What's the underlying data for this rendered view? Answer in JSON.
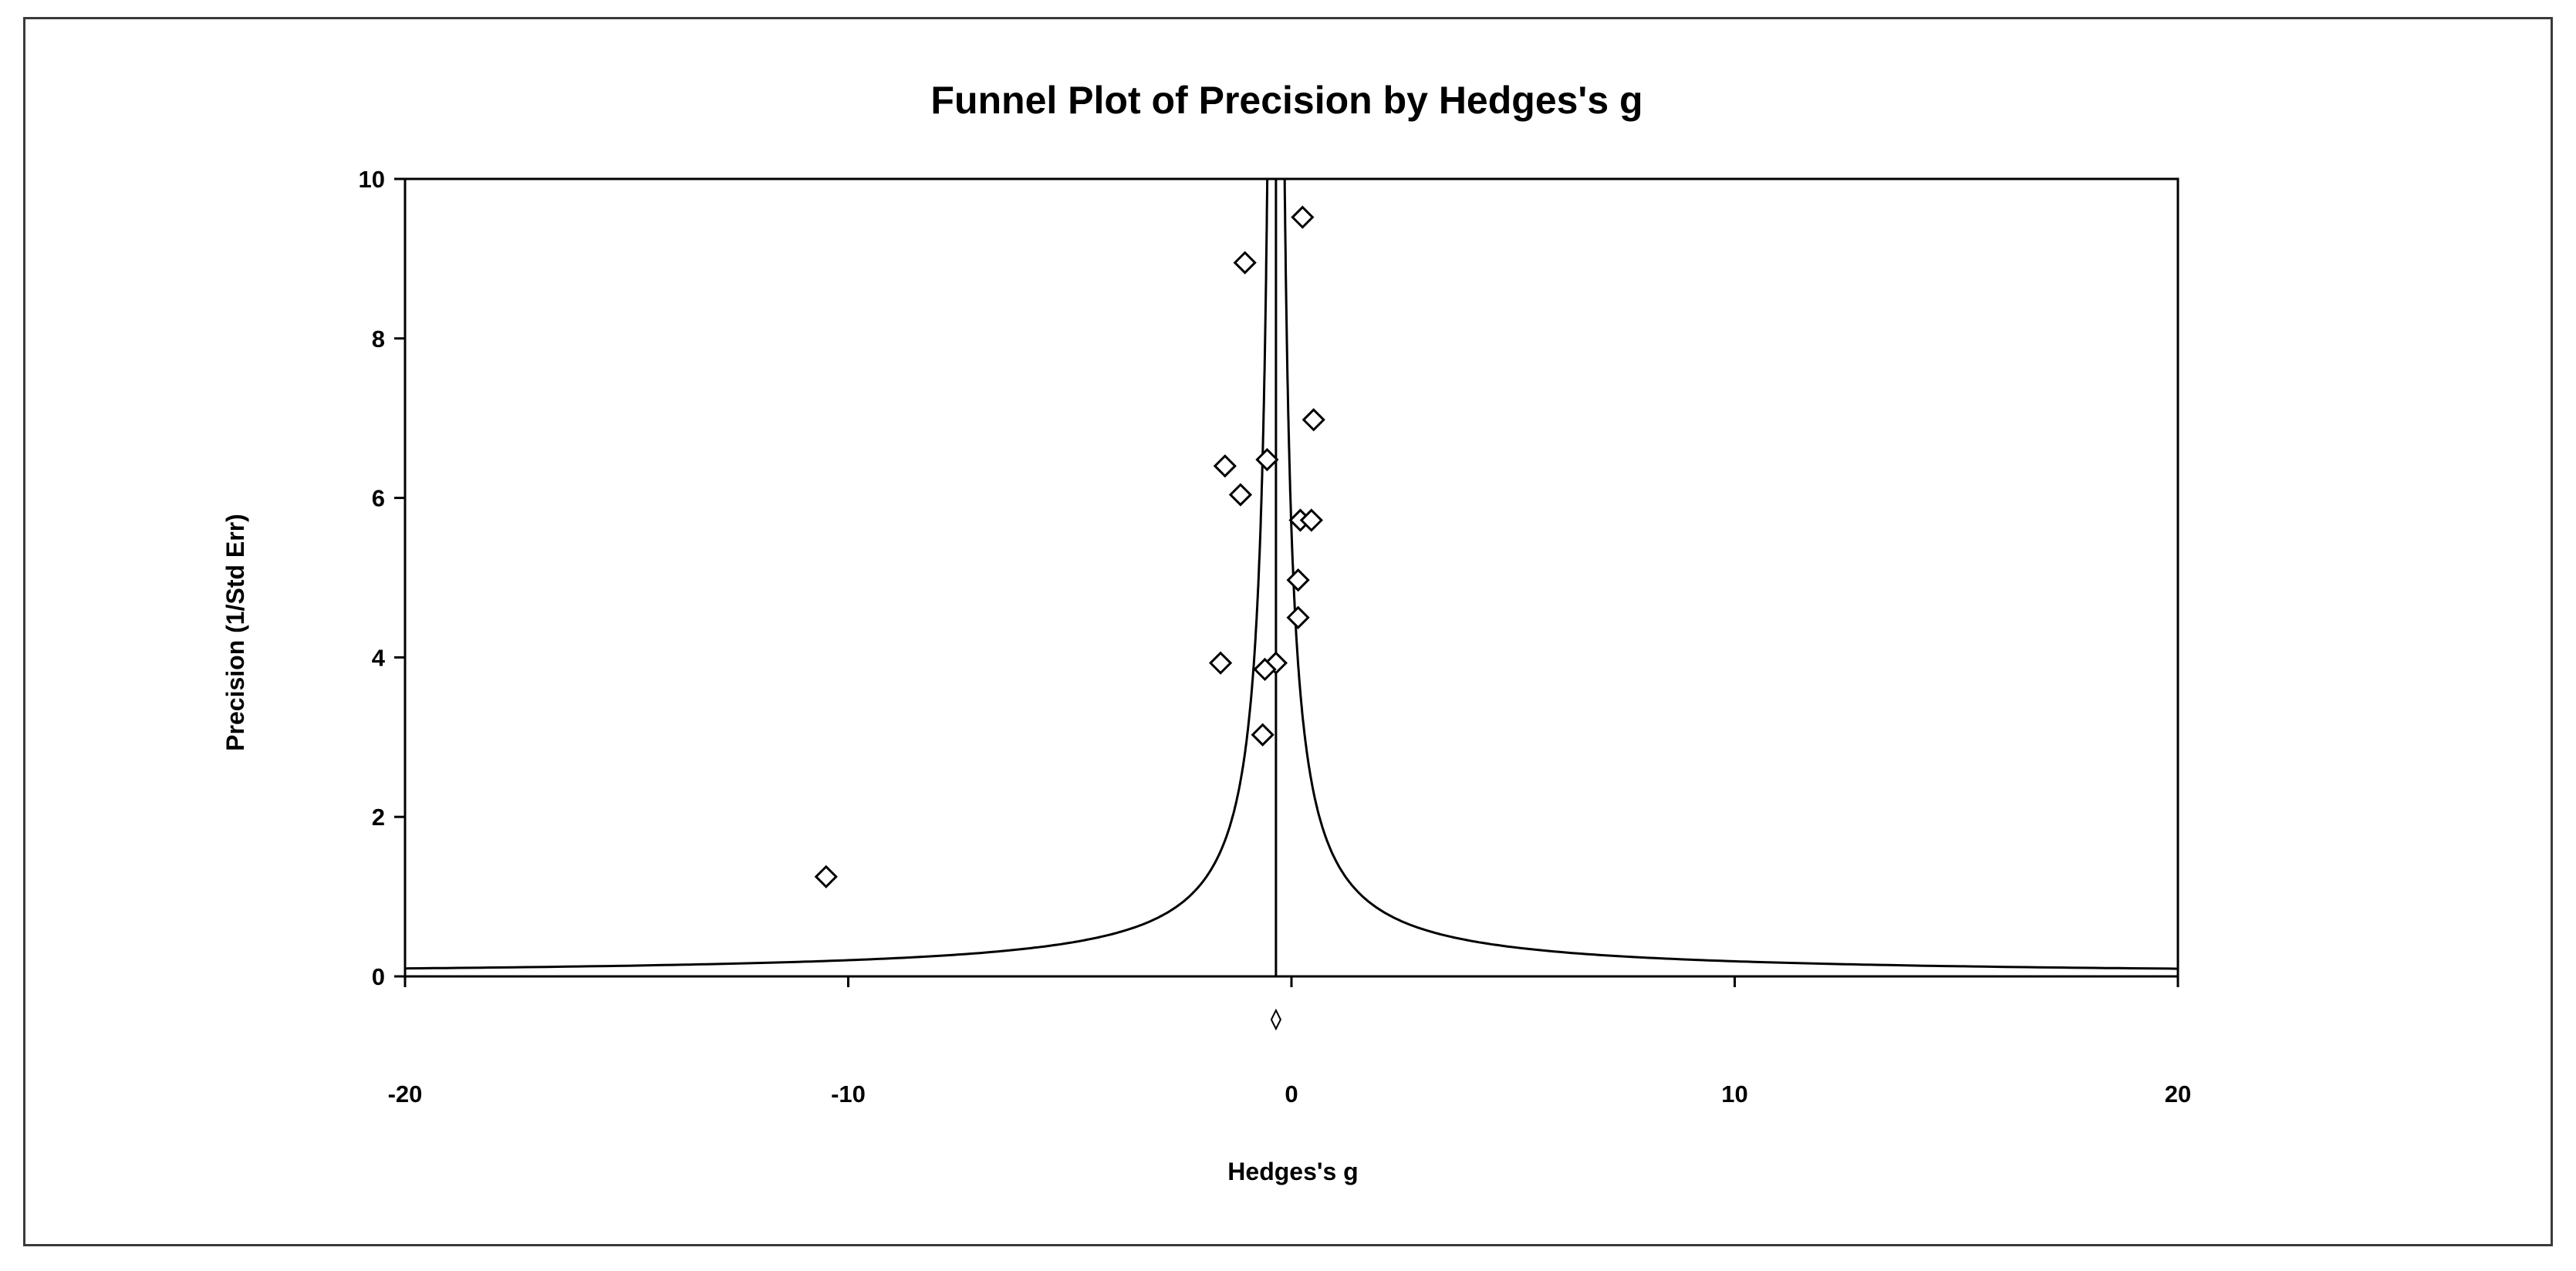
{
  "chart_data": {
    "type": "scatter",
    "title": "Funnel Plot of Precision by Hedges's g",
    "xlabel": "Hedges's g",
    "ylabel": "Precision (1/Std Err)",
    "xlim": [
      -20,
      20
    ],
    "ylim": [
      0,
      10
    ],
    "x_ticks": [
      -20,
      -10,
      0,
      10,
      20
    ],
    "y_ticks": [
      0,
      2,
      4,
      6,
      8,
      10
    ],
    "pooled_effect": -0.35,
    "grid": false,
    "legend": "none",
    "points": [
      {
        "x": 0.25,
        "y": 9.52
      },
      {
        "x": -1.05,
        "y": 8.95
      },
      {
        "x": 0.5,
        "y": 6.98
      },
      {
        "x": -0.55,
        "y": 6.48
      },
      {
        "x": -1.5,
        "y": 6.4
      },
      {
        "x": -1.15,
        "y": 6.04
      },
      {
        "x": 0.2,
        "y": 5.72
      },
      {
        "x": 0.45,
        "y": 5.72
      },
      {
        "x": 0.15,
        "y": 4.97
      },
      {
        "x": 0.15,
        "y": 4.5
      },
      {
        "x": -1.6,
        "y": 3.93
      },
      {
        "x": -0.35,
        "y": 3.93
      },
      {
        "x": -0.6,
        "y": 3.85
      },
      {
        "x": -0.65,
        "y": 3.03
      },
      {
        "x": -10.5,
        "y": 1.25
      }
    ],
    "marker_color": "#000000"
  }
}
